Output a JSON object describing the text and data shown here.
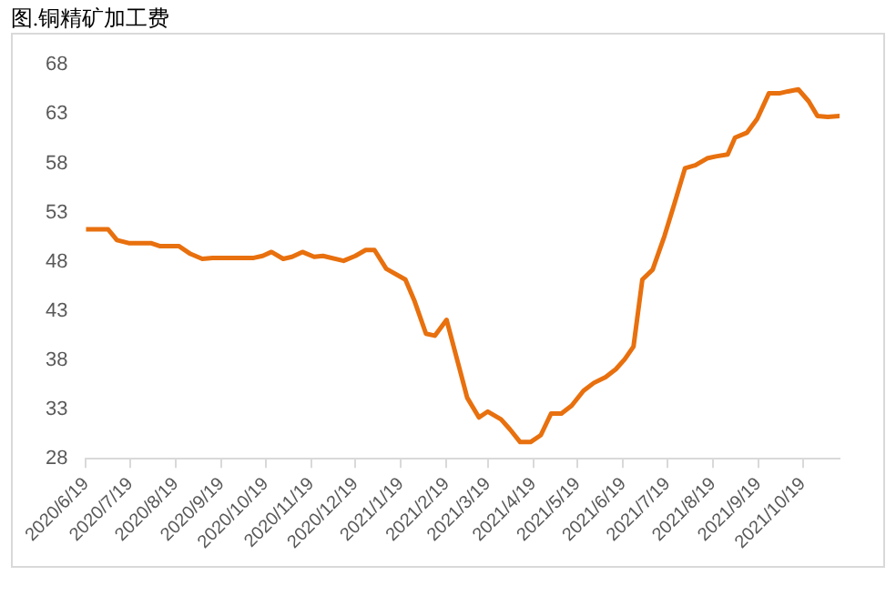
{
  "chart_data": {
    "type": "line",
    "title": "图.铜精矿加工费",
    "x": [
      "2020-06-19",
      "2020-07-04",
      "2020-07-10",
      "2020-07-18",
      "2020-08-02",
      "2020-08-08",
      "2020-08-21",
      "2020-08-29",
      "2020-09-06",
      "2020-09-13",
      "2020-10-11",
      "2020-10-17",
      "2020-10-23",
      "2020-10-31",
      "2020-11-06",
      "2020-11-13",
      "2020-11-21",
      "2020-11-27",
      "2020-12-11",
      "2020-12-19",
      "2020-12-26",
      "2021-01-01",
      "2021-01-09",
      "2021-01-22",
      "2021-01-28",
      "2021-02-05",
      "2021-02-11",
      "2021-02-19",
      "2021-02-27",
      "2021-03-05",
      "2021-03-13",
      "2021-03-19",
      "2021-03-28",
      "2021-04-03",
      "2021-04-10",
      "2021-04-17",
      "2021-04-24",
      "2021-05-01",
      "2021-05-08",
      "2021-05-15",
      "2021-05-23",
      "2021-05-30",
      "2021-06-07",
      "2021-06-14",
      "2021-06-20",
      "2021-06-26",
      "2021-07-02",
      "2021-07-09",
      "2021-07-17",
      "2021-07-24",
      "2021-07-31",
      "2021-08-07",
      "2021-08-15",
      "2021-08-21",
      "2021-08-29",
      "2021-09-03",
      "2021-09-11",
      "2021-09-18",
      "2021-09-26",
      "2021-10-03",
      "2021-10-09",
      "2021-10-16",
      "2021-10-23",
      "2021-10-29",
      "2021-11-05",
      "2021-11-13"
    ],
    "series": [
      {
        "color": "#e8700e",
        "values": [
          51.3,
          51.3,
          50.2,
          49.9,
          49.9,
          49.6,
          49.6,
          48.8,
          48.3,
          48.4,
          48.4,
          48.6,
          49.0,
          48.3,
          48.5,
          49.0,
          48.5,
          48.6,
          48.1,
          48.6,
          49.2,
          49.2,
          47.3,
          46.2,
          44.1,
          40.7,
          40.5,
          42.1,
          37.6,
          34.2,
          32.2,
          32.8,
          32.0,
          31.0,
          29.7,
          29.7,
          30.4,
          32.6,
          32.6,
          33.4,
          34.9,
          35.7,
          36.3,
          37.1,
          38.1,
          39.4,
          46.2,
          47.2,
          50.6,
          54.0,
          57.5,
          57.8,
          58.5,
          58.7,
          58.9,
          60.6,
          61.1,
          62.5,
          65.1,
          65.1,
          65.3,
          65.5,
          64.3,
          62.8,
          62.7,
          62.8
        ]
      }
    ],
    "xlim": [
      "2020-06-19",
      "2021-11-13"
    ],
    "xticks": [
      {
        "value": "2020-06-19",
        "label": "2020/6/19"
      },
      {
        "value": "2020-07-19",
        "label": "2020/7/19"
      },
      {
        "value": "2020-08-19",
        "label": "2020/8/19"
      },
      {
        "value": "2020-09-19",
        "label": "2020/9/19"
      },
      {
        "value": "2020-10-19",
        "label": "2020/10/19"
      },
      {
        "value": "2020-11-19",
        "label": "2020/11/19"
      },
      {
        "value": "2020-12-19",
        "label": "2020/12/19"
      },
      {
        "value": "2021-01-19",
        "label": "2021/1/19"
      },
      {
        "value": "2021-02-19",
        "label": "2021/2/19"
      },
      {
        "value": "2021-03-19",
        "label": "2021/3/19"
      },
      {
        "value": "2021-04-19",
        "label": "2021/4/19"
      },
      {
        "value": "2021-05-19",
        "label": "2021/5/19"
      },
      {
        "value": "2021-06-19",
        "label": "2021/6/19"
      },
      {
        "value": "2021-07-19",
        "label": "2021/7/19"
      },
      {
        "value": "2021-08-19",
        "label": "2021/8/19"
      },
      {
        "value": "2021-09-19",
        "label": "2021/9/19"
      },
      {
        "value": "2021-10-19",
        "label": "2021/10/19"
      }
    ],
    "ylim": [
      28,
      68
    ],
    "yticks": [
      28,
      33,
      38,
      43,
      48,
      53,
      58,
      63,
      68
    ],
    "grid": false,
    "legend": false,
    "marker": "none",
    "line_style": "solid"
  }
}
